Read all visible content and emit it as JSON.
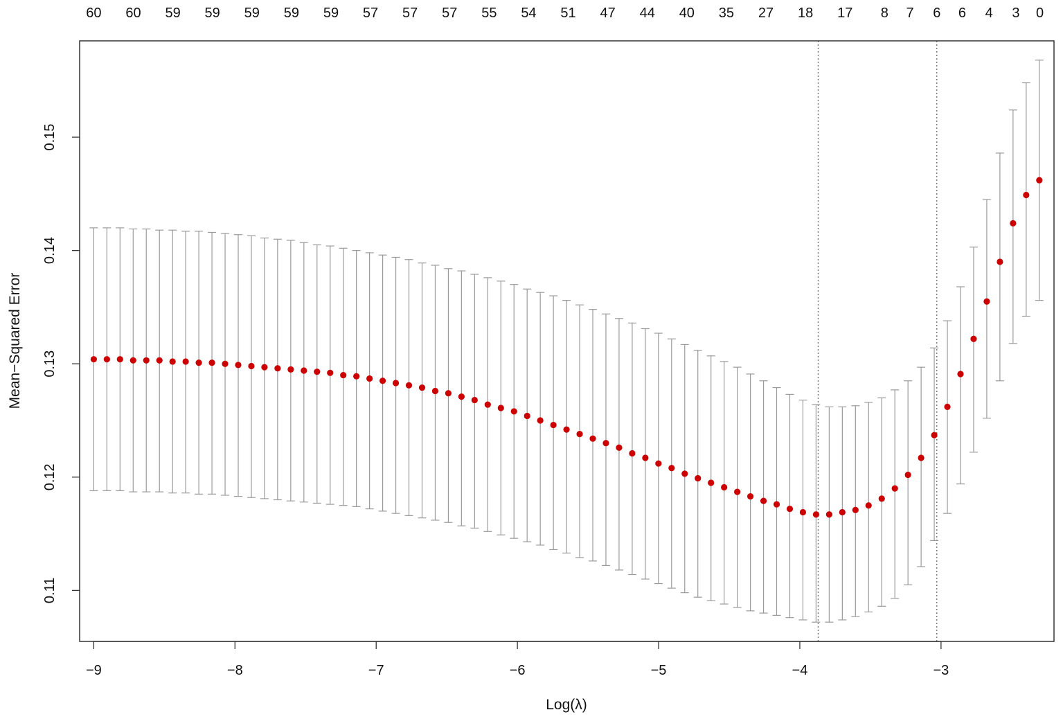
{
  "chart_data": {
    "type": "scatter",
    "xlabel": "Log(λ)",
    "ylabel": "Mean−Squared Error",
    "xlim": [
      -9.1,
      -2.2
    ],
    "ylim": [
      0.1055,
      0.1585
    ],
    "x_ticks": [
      -9,
      -8,
      -7,
      -6,
      -5,
      -4,
      -3
    ],
    "y_ticks": [
      0.11,
      0.12,
      0.13,
      0.14,
      0.15
    ],
    "x_tick_labels": [
      "−9",
      "−8",
      "−7",
      "−6",
      "−5",
      "−4",
      "−3"
    ],
    "y_tick_labels": [
      "0.11",
      "0.12",
      "0.13",
      "0.14",
      "0.15"
    ],
    "top_axis_labels": [
      {
        "x": -9.0,
        "label": "60"
      },
      {
        "x": -8.72,
        "label": "60"
      },
      {
        "x": -8.44,
        "label": "59"
      },
      {
        "x": -8.16,
        "label": "59"
      },
      {
        "x": -7.88,
        "label": "59"
      },
      {
        "x": -7.6,
        "label": "59"
      },
      {
        "x": -7.32,
        "label": "59"
      },
      {
        "x": -7.04,
        "label": "57"
      },
      {
        "x": -6.76,
        "label": "57"
      },
      {
        "x": -6.48,
        "label": "57"
      },
      {
        "x": -6.2,
        "label": "55"
      },
      {
        "x": -5.92,
        "label": "54"
      },
      {
        "x": -5.64,
        "label": "51"
      },
      {
        "x": -5.36,
        "label": "47"
      },
      {
        "x": -5.08,
        "label": "44"
      },
      {
        "x": -4.8,
        "label": "40"
      },
      {
        "x": -4.52,
        "label": "35"
      },
      {
        "x": -4.24,
        "label": "27"
      },
      {
        "x": -3.96,
        "label": "18"
      },
      {
        "x": -3.68,
        "label": "17"
      },
      {
        "x": -3.4,
        "label": "8"
      },
      {
        "x": -3.22,
        "label": "7"
      },
      {
        "x": -3.03,
        "label": "6"
      },
      {
        "x": -2.85,
        "label": "6"
      },
      {
        "x": -2.66,
        "label": "4"
      },
      {
        "x": -2.47,
        "label": "3"
      },
      {
        "x": -2.3,
        "label": "0"
      }
    ],
    "reference_lines_x": [
      -3.87,
      -3.03
    ],
    "grid": false,
    "series": [
      {
        "point_color": "#cc0000",
        "errorbar_color": "#9a9a9a",
        "x": [
          -9.0,
          -8.907,
          -8.814,
          -8.721,
          -8.628,
          -8.535,
          -8.442,
          -8.349,
          -8.256,
          -8.163,
          -8.07,
          -7.977,
          -7.884,
          -7.791,
          -7.698,
          -7.605,
          -7.512,
          -7.419,
          -7.326,
          -7.233,
          -7.14,
          -7.047,
          -6.954,
          -6.861,
          -6.768,
          -6.675,
          -6.582,
          -6.489,
          -6.396,
          -6.303,
          -6.21,
          -6.117,
          -6.024,
          -5.931,
          -5.838,
          -5.745,
          -5.652,
          -5.559,
          -5.466,
          -5.373,
          -5.28,
          -5.187,
          -5.094,
          -5.001,
          -4.908,
          -4.815,
          -4.722,
          -4.629,
          -4.536,
          -4.443,
          -4.35,
          -4.257,
          -4.164,
          -4.071,
          -3.978,
          -3.885,
          -3.792,
          -3.699,
          -3.606,
          -3.513,
          -3.42,
          -3.327,
          -3.234,
          -3.141,
          -3.048,
          -2.955,
          -2.862,
          -2.769,
          -2.676,
          -2.583,
          -2.49,
          -2.397,
          -2.304
        ],
        "y": [
          0.1304,
          0.1304,
          0.1304,
          0.1303,
          0.1303,
          0.1303,
          0.1302,
          0.1302,
          0.1301,
          0.1301,
          0.13,
          0.1299,
          0.1298,
          0.1297,
          0.1296,
          0.1295,
          0.1294,
          0.1293,
          0.1292,
          0.129,
          0.1289,
          0.1287,
          0.1285,
          0.1283,
          0.1281,
          0.1279,
          0.1276,
          0.1274,
          0.1271,
          0.1268,
          0.1264,
          0.1261,
          0.1258,
          0.1254,
          0.125,
          0.1246,
          0.1242,
          0.1238,
          0.1234,
          0.123,
          0.1226,
          0.1221,
          0.1217,
          0.1212,
          0.1208,
          0.1203,
          0.1199,
          0.1195,
          0.1191,
          0.1187,
          0.1183,
          0.1179,
          0.1176,
          0.1172,
          0.1169,
          0.1167,
          0.1167,
          0.1169,
          0.1171,
          0.1175,
          0.1181,
          0.119,
          0.1202,
          0.1217,
          0.1237,
          0.1262,
          0.1291,
          0.1322,
          0.1355,
          0.139,
          0.1424,
          0.1449,
          0.1462
        ],
        "upper": [
          0.142,
          0.142,
          0.142,
          0.1419,
          0.1419,
          0.1418,
          0.1418,
          0.1417,
          0.1417,
          0.1416,
          0.1415,
          0.1414,
          0.1413,
          0.1411,
          0.141,
          0.1409,
          0.1407,
          0.1405,
          0.1404,
          0.1402,
          0.14,
          0.1398,
          0.1396,
          0.1394,
          0.1392,
          0.1389,
          0.1387,
          0.1384,
          0.1382,
          0.1379,
          0.1376,
          0.1373,
          0.137,
          0.1366,
          0.1363,
          0.136,
          0.1356,
          0.1352,
          0.1348,
          0.1344,
          0.134,
          0.1336,
          0.1331,
          0.1327,
          0.1322,
          0.1317,
          0.1312,
          0.1307,
          0.1302,
          0.1297,
          0.1291,
          0.1285,
          0.1279,
          0.1273,
          0.1268,
          0.1264,
          0.1262,
          0.1262,
          0.1263,
          0.1266,
          0.127,
          0.1277,
          0.1285,
          0.1297,
          0.1314,
          0.1338,
          0.1368,
          0.1403,
          0.1445,
          0.1486,
          0.1524,
          0.1548,
          0.1568
        ],
        "lower": [
          0.1188,
          0.1188,
          0.1188,
          0.1187,
          0.1187,
          0.1187,
          0.1186,
          0.1186,
          0.1185,
          0.1185,
          0.1184,
          0.1183,
          0.1182,
          0.1181,
          0.118,
          0.1179,
          0.1178,
          0.1177,
          0.1176,
          0.1175,
          0.1174,
          0.1172,
          0.117,
          0.1168,
          0.1166,
          0.1164,
          0.1162,
          0.116,
          0.1157,
          0.1155,
          0.1152,
          0.1149,
          0.1146,
          0.1143,
          0.114,
          0.1136,
          0.1133,
          0.1129,
          0.1126,
          0.1122,
          0.1118,
          0.1114,
          0.111,
          0.1106,
          0.1102,
          0.1098,
          0.1094,
          0.1091,
          0.1088,
          0.1085,
          0.1082,
          0.108,
          0.1078,
          0.1076,
          0.1074,
          0.1072,
          0.1072,
          0.1074,
          0.1077,
          0.1081,
          0.1086,
          0.1093,
          0.1105,
          0.1121,
          0.1144,
          0.1168,
          0.1194,
          0.1222,
          0.1252,
          0.1285,
          0.1318,
          0.1342,
          0.1356
        ]
      }
    ]
  }
}
